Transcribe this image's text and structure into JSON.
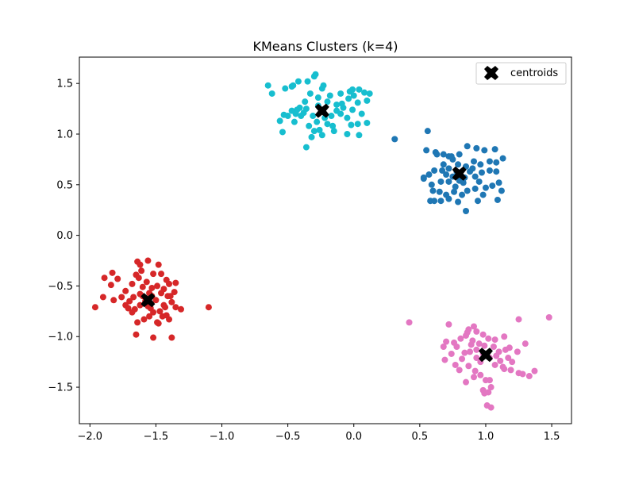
{
  "chart_data": {
    "type": "scatter",
    "title": "KMeans Clusters (k=4)",
    "xlabel": "",
    "ylabel": "",
    "xlim": [
      -2.08,
      1.65
    ],
    "ylim": [
      -1.86,
      1.76
    ],
    "x_ticks": [
      -2.0,
      -1.5,
      -1.0,
      -0.5,
      0.0,
      0.5,
      1.0,
      1.5
    ],
    "x_tick_labels": [
      "−2.0",
      "−1.5",
      "−1.0",
      "−0.5",
      "0.0",
      "0.5",
      "1.0",
      "1.5"
    ],
    "y_ticks": [
      -1.5,
      -1.0,
      -0.5,
      0.0,
      0.5,
      1.0,
      1.5
    ],
    "y_tick_labels": [
      "−1.5",
      "−1.0",
      "−0.5",
      "0.0",
      "0.5",
      "1.0",
      "1.5"
    ],
    "grid": false,
    "legend": {
      "position": "top-right",
      "entries": [
        "centroids"
      ]
    },
    "series": [
      {
        "color": "#17becf",
        "points": [
          [
            -0.65,
            1.48
          ],
          [
            -0.62,
            1.4
          ],
          [
            -0.52,
            1.45
          ],
          [
            -0.47,
            1.47
          ],
          [
            -0.46,
            1.48
          ],
          [
            -0.42,
            1.52
          ],
          [
            -0.35,
            1.52
          ],
          [
            -0.3,
            1.57
          ],
          [
            -0.29,
            1.59
          ],
          [
            -0.23,
            1.48
          ],
          [
            -0.18,
            1.38
          ],
          [
            -0.1,
            1.4
          ],
          [
            -0.03,
            1.42
          ],
          [
            -0.01,
            1.44
          ],
          [
            0.04,
            1.44
          ],
          [
            0.08,
            1.41
          ],
          [
            0.12,
            1.4
          ],
          [
            0.1,
            1.33
          ],
          [
            0.03,
            1.31
          ],
          [
            -0.04,
            1.35
          ],
          [
            -0.13,
            1.29
          ],
          [
            -0.2,
            1.32
          ],
          [
            -0.27,
            1.36
          ],
          [
            -0.33,
            1.4
          ],
          [
            -0.37,
            1.32
          ],
          [
            -0.41,
            1.26
          ],
          [
            -0.44,
            1.2
          ],
          [
            -0.5,
            1.18
          ],
          [
            -0.53,
            1.19
          ],
          [
            -0.56,
            1.13
          ],
          [
            -0.54,
            1.02
          ],
          [
            -0.45,
            1.12
          ],
          [
            -0.4,
            1.18
          ],
          [
            -0.36,
            1.25
          ],
          [
            -0.31,
            1.18
          ],
          [
            -0.28,
            1.12
          ],
          [
            -0.34,
            1.08
          ],
          [
            -0.3,
            1.03
          ],
          [
            -0.26,
            1.04
          ],
          [
            -0.2,
            1.1
          ],
          [
            -0.17,
            1.18
          ],
          [
            -0.13,
            1.23
          ],
          [
            -0.1,
            1.2
          ],
          [
            -0.05,
            1.16
          ],
          [
            -0.02,
            1.09
          ],
          [
            0.03,
            1.1
          ],
          [
            0.1,
            1.11
          ],
          [
            0.06,
            1.2
          ],
          [
            -0.01,
            1.24
          ],
          [
            -0.08,
            1.26
          ],
          [
            -0.16,
            1.08
          ],
          [
            -0.24,
            0.99
          ],
          [
            -0.36,
            0.87
          ],
          [
            -0.32,
            0.97
          ],
          [
            -0.05,
            1.0
          ],
          [
            0.04,
            0.99
          ],
          [
            -0.43,
            1.24
          ],
          [
            -0.38,
            1.21
          ],
          [
            -0.22,
            1.16
          ],
          [
            -0.15,
            1.03
          ],
          [
            -0.27,
            1.28
          ],
          [
            -0.09,
            1.3
          ],
          [
            0.0,
            1.38
          ],
          [
            -0.47,
            1.23
          ],
          [
            -0.24,
            1.45
          ]
        ]
      },
      {
        "color": "#1f77b4",
        "points": [
          [
            0.31,
            0.95
          ],
          [
            0.56,
            1.03
          ],
          [
            0.55,
            0.84
          ],
          [
            0.62,
            0.82
          ],
          [
            0.63,
            0.8
          ],
          [
            0.68,
            0.8
          ],
          [
            0.72,
            0.78
          ],
          [
            0.75,
            0.75
          ],
          [
            0.74,
            0.78
          ],
          [
            0.8,
            0.8
          ],
          [
            0.86,
            0.88
          ],
          [
            0.93,
            0.86
          ],
          [
            0.99,
            0.84
          ],
          [
            1.07,
            0.85
          ],
          [
            1.13,
            0.76
          ],
          [
            1.08,
            0.72
          ],
          [
            1.03,
            0.73
          ],
          [
            0.96,
            0.7
          ],
          [
            0.91,
            0.73
          ],
          [
            0.85,
            0.68
          ],
          [
            0.79,
            0.7
          ],
          [
            0.72,
            0.66
          ],
          [
            0.67,
            0.64
          ],
          [
            0.61,
            0.64
          ],
          [
            0.57,
            0.6
          ],
          [
            0.53,
            0.57
          ],
          [
            0.53,
            0.56
          ],
          [
            0.59,
            0.5
          ],
          [
            0.66,
            0.53
          ],
          [
            0.72,
            0.53
          ],
          [
            0.77,
            0.48
          ],
          [
            0.8,
            0.54
          ],
          [
            0.84,
            0.57
          ],
          [
            0.88,
            0.63
          ],
          [
            0.92,
            0.58
          ],
          [
            0.97,
            0.62
          ],
          [
            1.03,
            0.64
          ],
          [
            1.08,
            0.63
          ],
          [
            1.1,
            0.52
          ],
          [
            1.05,
            0.49
          ],
          [
            1.0,
            0.47
          ],
          [
            0.92,
            0.46
          ],
          [
            0.86,
            0.44
          ],
          [
            0.82,
            0.4
          ],
          [
            0.76,
            0.43
          ],
          [
            0.7,
            0.4
          ],
          [
            0.65,
            0.43
          ],
          [
            0.6,
            0.44
          ],
          [
            0.58,
            0.34
          ],
          [
            0.61,
            0.34
          ],
          [
            0.66,
            0.34
          ],
          [
            0.72,
            0.36
          ],
          [
            0.79,
            0.33
          ],
          [
            0.85,
            0.24
          ],
          [
            0.94,
            0.34
          ],
          [
            0.98,
            0.4
          ],
          [
            1.09,
            0.35
          ],
          [
            1.12,
            0.44
          ],
          [
            0.7,
            0.6
          ],
          [
            0.78,
            0.63
          ],
          [
            0.9,
            0.66
          ],
          [
            0.75,
            0.58
          ],
          [
            0.83,
            0.52
          ],
          [
            0.68,
            0.7
          ],
          [
            0.95,
            0.53
          ]
        ]
      },
      {
        "color": "#d62728",
        "points": [
          [
            -1.96,
            -0.71
          ],
          [
            -1.9,
            -0.61
          ],
          [
            -1.89,
            -0.42
          ],
          [
            -1.83,
            -0.37
          ],
          [
            -1.79,
            -0.43
          ],
          [
            -1.84,
            -0.49
          ],
          [
            -1.82,
            -0.64
          ],
          [
            -1.76,
            -0.61
          ],
          [
            -1.73,
            -0.69
          ],
          [
            -1.7,
            -0.65
          ],
          [
            -1.73,
            -0.55
          ],
          [
            -1.68,
            -0.48
          ],
          [
            -1.65,
            -0.39
          ],
          [
            -1.64,
            -0.26
          ],
          [
            -1.62,
            -0.29
          ],
          [
            -1.61,
            -0.35
          ],
          [
            -1.56,
            -0.25
          ],
          [
            -1.52,
            -0.38
          ],
          [
            -1.48,
            -0.29
          ],
          [
            -1.46,
            -0.38
          ],
          [
            -1.42,
            -0.44
          ],
          [
            -1.4,
            -0.48
          ],
          [
            -1.35,
            -0.47
          ],
          [
            -1.36,
            -0.56
          ],
          [
            -1.41,
            -0.6
          ],
          [
            -1.46,
            -0.57
          ],
          [
            -1.49,
            -0.5
          ],
          [
            -1.53,
            -0.52
          ],
          [
            -1.57,
            -0.46
          ],
          [
            -1.6,
            -0.51
          ],
          [
            -1.62,
            -0.58
          ],
          [
            -1.58,
            -0.65
          ],
          [
            -1.54,
            -0.72
          ],
          [
            -1.5,
            -0.64
          ],
          [
            -1.44,
            -0.69
          ],
          [
            -1.38,
            -0.66
          ],
          [
            -1.35,
            -0.71
          ],
          [
            -1.31,
            -0.73
          ],
          [
            -1.1,
            -0.71
          ],
          [
            -1.4,
            -0.83
          ],
          [
            -1.45,
            -0.8
          ],
          [
            -1.49,
            -0.86
          ],
          [
            -1.55,
            -0.8
          ],
          [
            -1.59,
            -0.83
          ],
          [
            -1.64,
            -0.86
          ],
          [
            -1.68,
            -0.76
          ],
          [
            -1.66,
            -0.73
          ],
          [
            -1.62,
            -0.69
          ],
          [
            -1.56,
            -0.7
          ],
          [
            -1.52,
            -0.76
          ],
          [
            -1.47,
            -0.75
          ],
          [
            -1.42,
            -0.79
          ],
          [
            -1.48,
            -0.87
          ],
          [
            -1.52,
            -1.01
          ],
          [
            -1.38,
            -1.01
          ],
          [
            -1.65,
            -0.98
          ],
          [
            -1.6,
            -0.6
          ],
          [
            -1.55,
            -0.57
          ],
          [
            -1.44,
            -0.53
          ],
          [
            -1.67,
            -0.61
          ],
          [
            -1.63,
            -0.42
          ],
          [
            -1.39,
            -0.6
          ],
          [
            -1.43,
            -0.71
          ],
          [
            -1.71,
            -0.72
          ],
          [
            -1.53,
            -0.6
          ]
        ]
      },
      {
        "color": "#e377c2",
        "points": [
          [
            0.42,
            -0.86
          ],
          [
            0.72,
            -0.88
          ],
          [
            0.7,
            -1.05
          ],
          [
            0.68,
            -1.1
          ],
          [
            0.69,
            -1.23
          ],
          [
            0.76,
            -1.06
          ],
          [
            0.78,
            -1.1
          ],
          [
            0.77,
            -1.28
          ],
          [
            0.81,
            -1.02
          ],
          [
            0.85,
            -0.99
          ],
          [
            0.87,
            -0.93
          ],
          [
            0.91,
            -0.9
          ],
          [
            0.93,
            -0.95
          ],
          [
            0.98,
            -0.98
          ],
          [
            1.02,
            -1.02
          ],
          [
            1.07,
            -1.03
          ],
          [
            1.14,
            -1.0
          ],
          [
            1.18,
            -1.11
          ],
          [
            1.25,
            -0.83
          ],
          [
            1.3,
            -1.07
          ],
          [
            1.48,
            -0.81
          ],
          [
            1.24,
            -1.15
          ],
          [
            1.17,
            -1.21
          ],
          [
            1.13,
            -1.3
          ],
          [
            1.07,
            -1.28
          ],
          [
            1.03,
            -1.21
          ],
          [
            0.98,
            -1.17
          ],
          [
            0.93,
            -1.13
          ],
          [
            0.89,
            -1.08
          ],
          [
            0.84,
            -1.16
          ],
          [
            0.82,
            -1.22
          ],
          [
            0.87,
            -1.29
          ],
          [
            0.92,
            -1.34
          ],
          [
            0.96,
            -1.38
          ],
          [
            1.0,
            -1.43
          ],
          [
            1.03,
            -1.43
          ],
          [
            0.98,
            -1.53
          ],
          [
            1.02,
            -1.55
          ],
          [
            0.99,
            -1.56
          ],
          [
            1.04,
            -1.5
          ],
          [
            1.01,
            -1.68
          ],
          [
            1.04,
            -1.7
          ],
          [
            1.14,
            -1.32
          ],
          [
            1.2,
            -1.25
          ],
          [
            1.25,
            -1.36
          ],
          [
            1.28,
            -1.37
          ],
          [
            1.33,
            -1.39
          ],
          [
            1.37,
            -1.34
          ],
          [
            0.85,
            -1.45
          ],
          [
            0.9,
            -1.04
          ],
          [
            0.95,
            -1.07
          ],
          [
            1.1,
            -1.15
          ],
          [
            0.8,
            -1.33
          ],
          [
            0.96,
            -1.25
          ],
          [
            1.06,
            -1.1
          ],
          [
            0.86,
            -0.96
          ],
          [
            0.93,
            -1.21
          ],
          [
            1.11,
            -1.24
          ],
          [
            0.88,
            -1.15
          ],
          [
            0.99,
            -1.09
          ],
          [
            1.15,
            -1.13
          ],
          [
            0.74,
            -1.17
          ],
          [
            1.19,
            -1.33
          ],
          [
            0.91,
            -1.4
          ],
          [
            1.08,
            -1.19
          ]
        ]
      }
    ],
    "centroids": {
      "label": "centroids",
      "color": "#000000",
      "points": [
        [
          -0.24,
          1.23
        ],
        [
          0.8,
          0.61
        ],
        [
          -1.56,
          -0.64
        ],
        [
          1.0,
          -1.18
        ]
      ]
    }
  }
}
